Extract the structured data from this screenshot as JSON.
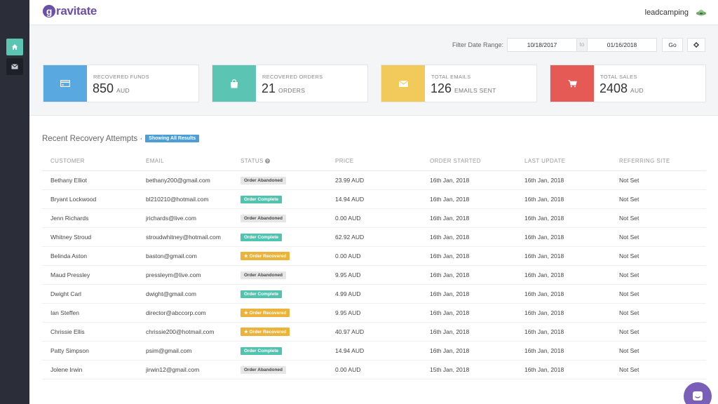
{
  "brand": {
    "logo_initial": "g",
    "logo_rest": "ravitate"
  },
  "user": {
    "name": "leadcamping"
  },
  "filter": {
    "label": "Filter Date Range:",
    "from": "10/18/2017",
    "to_label": "to",
    "to": "01/16/2018",
    "go_label": "Go"
  },
  "stats": [
    {
      "label": "Recovered Funds",
      "value": "850",
      "unit": "AUD",
      "icon": "credit-card-icon",
      "color": "#5aa8e0"
    },
    {
      "label": "Recovered Orders",
      "value": "21",
      "unit": "Orders",
      "icon": "shopping-bag-icon",
      "color": "#5bc4b3"
    },
    {
      "label": "Total Emails",
      "value": "126",
      "unit": "Emails Sent",
      "icon": "envelope-icon",
      "color": "#f2ca5c"
    },
    {
      "label": "Total Sales",
      "value": "2408",
      "unit": "AUD",
      "icon": "cart-icon",
      "color": "#e55a54"
    }
  ],
  "table": {
    "title": "Recent Recovery Attempts ·",
    "badge": "Showing All Results",
    "columns": [
      "Customer",
      "Email",
      "Status",
      "Price",
      "Order Started",
      "Last Update",
      "Referring Site"
    ],
    "rows": [
      {
        "customer": "Bethany Elliot",
        "email": "bethany200@gmail.com",
        "status": "Order Abandoned",
        "price": "23.99 AUD",
        "started": "16th Jan, 2018",
        "updated": "16th Jan, 2018",
        "site": "Not Set"
      },
      {
        "customer": "Bryant Lockwood",
        "email": "bl210210@hotmail.com",
        "status": "Order Complete",
        "price": "14.94 AUD",
        "started": "16th Jan, 2018",
        "updated": "16th Jan, 2018",
        "site": "Not Set"
      },
      {
        "customer": "Jenn Richards",
        "email": "jrichards@live.com",
        "status": "Order Abandoned",
        "price": "0.00 AUD",
        "started": "16th Jan, 2018",
        "updated": "16th Jan, 2018",
        "site": "Not Set"
      },
      {
        "customer": "Whitney Stroud",
        "email": "stroudwhitney@hotmail.com",
        "status": "Order Complete",
        "price": "62.92 AUD",
        "started": "16th Jan, 2018",
        "updated": "16th Jan, 2018",
        "site": "Not Set"
      },
      {
        "customer": "Belinda Aston",
        "email": "baston@gmail.com",
        "status": "★ Order Recovered",
        "price": "0.00 AUD",
        "started": "16th Jan, 2018",
        "updated": "16th Jan, 2018",
        "site": "Not Set"
      },
      {
        "customer": "Maud Pressley",
        "email": "pressleym@live.com",
        "status": "Order Abandoned",
        "price": "9.95 AUD",
        "started": "16th Jan, 2018",
        "updated": "16th Jan, 2018",
        "site": "Not Set"
      },
      {
        "customer": "Dwight Carl",
        "email": "dwight@gmail.com",
        "status": "Order Complete",
        "price": "4.99 AUD",
        "started": "16th Jan, 2018",
        "updated": "16th Jan, 2018",
        "site": "Not Set"
      },
      {
        "customer": "Ian Steffen",
        "email": "director@abccorp.com",
        "status": "★ Order Recovered",
        "price": "9.95 AUD",
        "started": "16th Jan, 2018",
        "updated": "16th Jan, 2018",
        "site": "Not Set"
      },
      {
        "customer": "Chrissie Ellis",
        "email": "chrissie200@hotmail.com",
        "status": "★ Order Recovered",
        "price": "40.97 AUD",
        "started": "16th Jan, 2018",
        "updated": "16th Jan, 2018",
        "site": "Not Set"
      },
      {
        "customer": "Patty Simpson",
        "email": "psim@gmail.com",
        "status": "Order Complete",
        "price": "14.94 AUD",
        "started": "16th Jan, 2018",
        "updated": "16th Jan, 2018",
        "site": "Not Set"
      },
      {
        "customer": "Jolene Irwin",
        "email": "jirwin12@gmail.com",
        "status": "Order Abandoned",
        "price": "0.00 AUD",
        "started": "15th Jan, 2018",
        "updated": "16th Jan, 2018",
        "site": "Not Set"
      }
    ]
  }
}
